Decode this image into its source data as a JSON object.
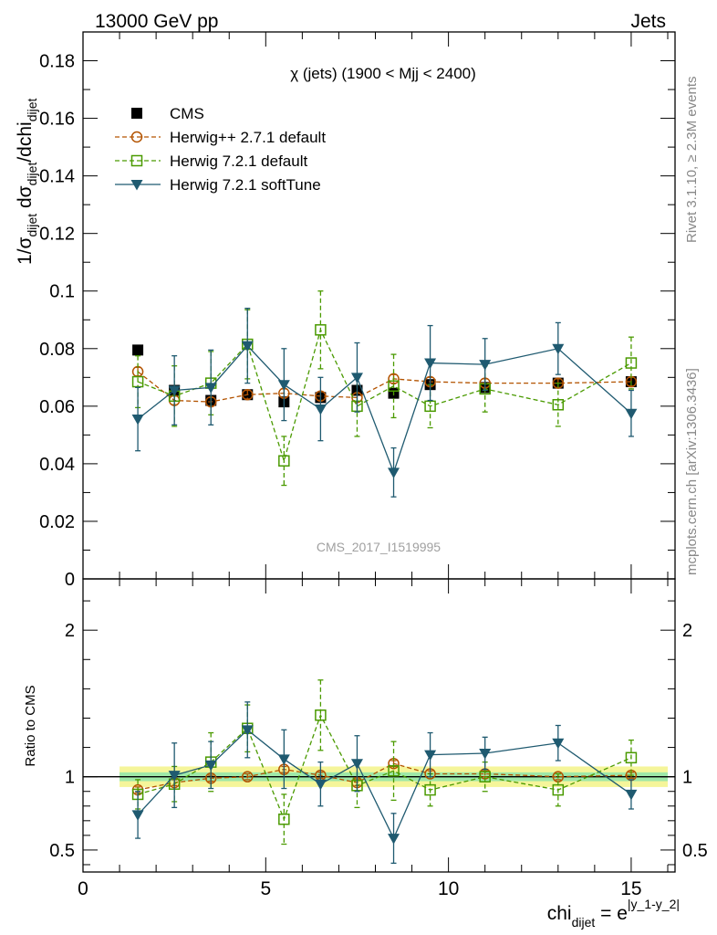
{
  "header": {
    "left": "13000 GeV pp",
    "right": "Jets"
  },
  "side_labels": {
    "rivet": "Rivet 3.1.10, ≥ 2.3M events",
    "mcplots": "mcplots.cern.ch [arXiv:1306.3436]"
  },
  "watermark": "CMS_2017_I1519995",
  "chart_data": {
    "type": "scatter",
    "title": "χ (jets) (1900 < Mjj < 2400)",
    "ylabel_main": {
      "base": "1/σ",
      "sub1": "dijet",
      "mid": " dσ",
      "sub2": "dijet",
      "tail": "/dchi",
      "sub3": "dijet"
    },
    "ylabel_ratio": "Ratio to CMS",
    "xlabel": {
      "base": "chi",
      "sub": "dijet",
      "mid": " = e",
      "sup": "|y_1-y_2|"
    },
    "xlim": [
      0,
      16.2
    ],
    "ylim_main": [
      0,
      0.19
    ],
    "ylim_ratio": [
      0.35,
      2.35
    ],
    "x_ticks": [
      "0",
      "5",
      "10",
      "15"
    ],
    "y_ticks_main": [
      "0",
      "0.02",
      "0.04",
      "0.06",
      "0.08",
      "0.1",
      "0.12",
      "0.14",
      "0.16",
      "0.18"
    ],
    "y_ticks_ratio": [
      "0.5",
      "1",
      "2"
    ],
    "legend_position": "top-left",
    "x": [
      1.5,
      2.5,
      3.5,
      4.5,
      5.5,
      6.5,
      7.5,
      8.5,
      9.5,
      11.0,
      13.0,
      15.0
    ],
    "cms_band": {
      "x_range": [
        1.0,
        16.0
      ],
      "inner": 0.03,
      "outer": 0.07
    },
    "series": [
      {
        "name": "CMS",
        "color": "#000000",
        "marker": "filled-square",
        "y": [
          0.0795,
          0.0655,
          0.062,
          0.064,
          0.0615,
          0.063,
          0.0655,
          0.0645,
          0.0675,
          0.0665,
          0.068,
          0.0685
        ],
        "yerr": [
          0.0015,
          0.0015,
          0.0015,
          0.0015,
          0.0015,
          0.0015,
          0.0015,
          0.0015,
          0.0015,
          0.0015,
          0.0015,
          0.0015
        ],
        "ratio": [
          1,
          1,
          1,
          1,
          1,
          1,
          1,
          1,
          1,
          1,
          1,
          1
        ],
        "ratio_err": [
          0,
          0,
          0,
          0,
          0,
          0,
          0,
          0,
          0,
          0,
          0,
          0
        ]
      },
      {
        "name": "Herwig++ 2.7.1 default",
        "color": "#b35300",
        "marker": "open-circle",
        "line": "dashed",
        "y": [
          0.072,
          0.062,
          0.0615,
          0.064,
          0.0645,
          0.0635,
          0.063,
          0.0695,
          0.0685,
          0.068,
          0.068,
          0.0685
        ],
        "yerr": [
          0.0015,
          0.0015,
          0.0015,
          0.0015,
          0.0015,
          0.0015,
          0.0015,
          0.0015,
          0.0015,
          0.0015,
          0.0015,
          0.0015
        ],
        "ratio": [
          0.91,
          0.96,
          0.99,
          1.0,
          1.05,
          1.01,
          0.96,
          1.09,
          1.02,
          1.02,
          1.0,
          1.01
        ],
        "ratio_err": [
          0.02,
          0.02,
          0.02,
          0.02,
          0.02,
          0.02,
          0.02,
          0.02,
          0.02,
          0.02,
          0.02,
          0.02
        ]
      },
      {
        "name": "Herwig 7.2.1 default",
        "color": "#4a9a00",
        "marker": "open-square",
        "line": "dashed",
        "y": [
          0.0685,
          0.0635,
          0.068,
          0.0815,
          0.041,
          0.0865,
          0.06,
          0.067,
          0.06,
          0.066,
          0.0605,
          0.075
        ],
        "yerr": [
          0.009,
          0.0105,
          0.011,
          0.012,
          0.0085,
          0.0135,
          0.0105,
          0.011,
          0.0075,
          0.008,
          0.0075,
          0.009
        ],
        "ratio": [
          0.88,
          0.95,
          1.1,
          1.33,
          0.71,
          1.42,
          0.94,
          1.04,
          0.91,
          1.0,
          0.91,
          1.13
        ],
        "ratio_err": [
          0.1,
          0.12,
          0.2,
          0.16,
          0.17,
          0.24,
          0.15,
          0.2,
          0.11,
          0.1,
          0.11,
          0.12
        ]
      },
      {
        "name": "Herwig 7.2.1 softTune",
        "color": "#1f5a70",
        "marker": "filled-triangle-down",
        "line": "solid",
        "y": [
          0.0555,
          0.0655,
          0.0665,
          0.081,
          0.0675,
          0.059,
          0.07,
          0.037,
          0.075,
          0.0745,
          0.08,
          0.0575
        ],
        "yerr": [
          0.011,
          0.012,
          0.013,
          0.013,
          0.0125,
          0.011,
          0.012,
          0.0085,
          0.013,
          0.009,
          0.009,
          0.008
        ],
        "ratio": [
          0.74,
          1.01,
          1.08,
          1.32,
          1.12,
          0.95,
          1.09,
          0.58,
          1.15,
          1.16,
          1.23,
          0.88
        ],
        "ratio_err": [
          0.16,
          0.22,
          0.16,
          0.19,
          0.2,
          0.15,
          0.19,
          0.17,
          0.15,
          0.11,
          0.12,
          0.1
        ]
      }
    ]
  }
}
